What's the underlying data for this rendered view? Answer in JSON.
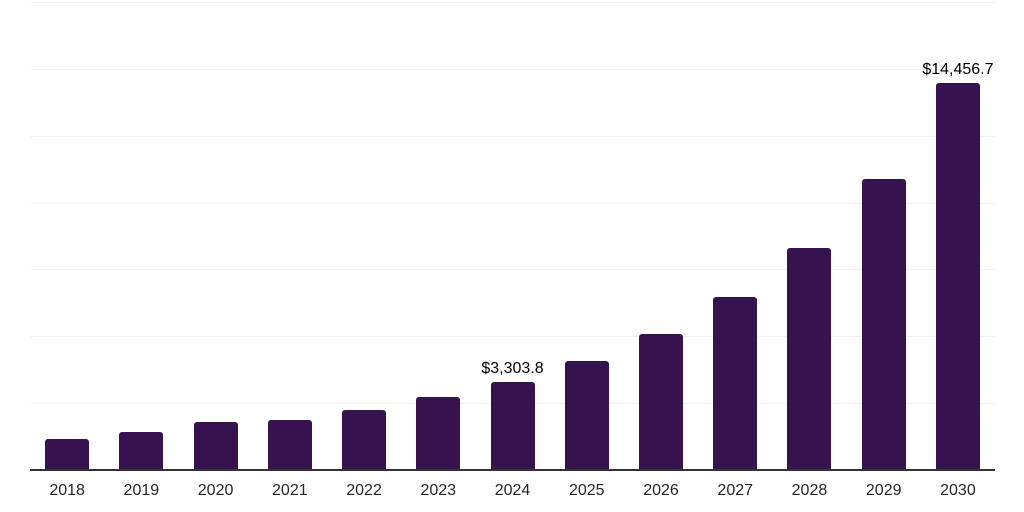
{
  "chart_data": {
    "type": "bar",
    "title": "",
    "xlabel": "",
    "ylabel": "",
    "categories": [
      "2018",
      "2019",
      "2020",
      "2021",
      "2022",
      "2023",
      "2024",
      "2025",
      "2026",
      "2027",
      "2028",
      "2029",
      "2030"
    ],
    "values": [
      1150,
      1420,
      1790,
      1865,
      2240,
      2720,
      3303.8,
      4070,
      5075,
      6455,
      8320,
      10890,
      14456.7
    ],
    "data_labels": [
      "",
      "",
      "",
      "",
      "",
      "",
      "$3,303.8",
      "",
      "",
      "",
      "",
      "",
      "$14,456.7"
    ],
    "ylim": [
      0,
      17500
    ],
    "gridline_step": 2500,
    "grid": "horizontal",
    "legend": "none",
    "colors": {
      "bar": "#36124E",
      "axis_line": "#333333",
      "gridline": "#F2F2F2",
      "tick_label": "#262626",
      "data_label": "#000000",
      "background": "#FFFFFF"
    }
  }
}
